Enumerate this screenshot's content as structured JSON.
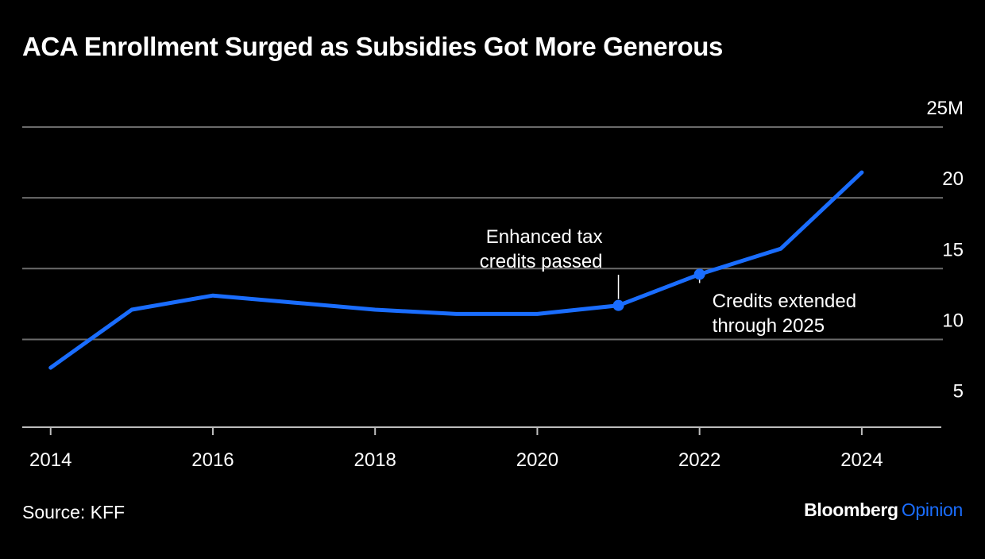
{
  "title": "ACA Enrollment Surged as Subsidies Got More Generous",
  "source": "Source: KFF",
  "brand": {
    "name": "Bloomberg",
    "section": "Opinion"
  },
  "colors": {
    "background": "#000000",
    "line": "#1a6dff",
    "grid": "#6b6b6b",
    "text": "#ffffff",
    "brand_accent": "#1a6dff"
  },
  "chart_data": {
    "type": "line",
    "title": "ACA Enrollment Surged as Subsidies Got More Generous",
    "xlabel": "",
    "ylabel": "",
    "x": [
      2014,
      2015,
      2016,
      2017,
      2018,
      2019,
      2020,
      2021,
      2022,
      2023,
      2024
    ],
    "series": [
      {
        "values": [
          8.0,
          12.1,
          13.1,
          12.6,
          12.1,
          11.8,
          11.8,
          12.4,
          14.6,
          16.4,
          21.8
        ]
      }
    ],
    "xlim": [
      2013.65,
      2025.0
    ],
    "ylim": [
      3.8,
      25
    ],
    "y_ticks": [
      5,
      10,
      15,
      20,
      25
    ],
    "y_tick_labels": [
      "5",
      "10",
      "15",
      "20",
      "25M"
    ],
    "x_ticks": [
      2014,
      2016,
      2018,
      2020,
      2022,
      2024
    ],
    "x_tick_labels": [
      "2014",
      "2016",
      "2018",
      "2020",
      "2022",
      "2024"
    ],
    "grid": true,
    "y_axis_position": "right",
    "annotations": [
      {
        "x": 2021,
        "y": 12.4,
        "lines": [
          "Enhanced tax",
          "credits passed"
        ],
        "placement": "above-left"
      },
      {
        "x": 2022,
        "y": 14.6,
        "lines": [
          "Credits extended",
          "through 2025"
        ],
        "placement": "below-right"
      }
    ]
  }
}
